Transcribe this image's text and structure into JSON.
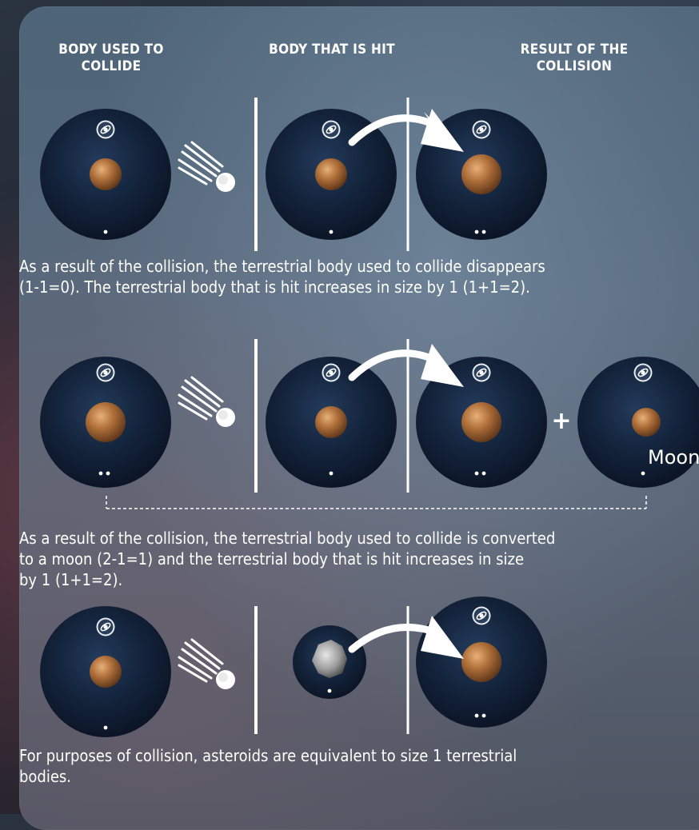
{
  "headers": {
    "collider": "BODY USED TO\nCOLLIDE",
    "target": "BODY THAT IS HIT",
    "result": "RESULT OF THE\nCOLLISION"
  },
  "rows": [
    {
      "caption_lines": [
        "As a result of the collision, the terrestrial body used to collide disappears",
        "(1-1=0). The terrestrial body that is hit increases in size by 1 (1+1=2)."
      ]
    },
    {
      "plus_symbol": "+",
      "moon_label": "Moon",
      "caption_lines": [
        "As a result of the collision, the terrestrial body used to collide is converted",
        "to a moon (2-1=1) and the terrestrial body that is hit increases in size",
        "by 1 (1+1=2)."
      ]
    },
    {
      "caption_lines": [
        "For purposes of collision, asteroids are equivalent to size 1 terrestrial",
        "bodies."
      ]
    }
  ],
  "icons": {
    "body_badge": "orbit-icon",
    "collision": "comet-icon",
    "transfer": "curved-arrow-icon"
  },
  "colors": {
    "disc": "#0d1a2e",
    "planet": "#b0703a",
    "text": "#ffffff"
  }
}
